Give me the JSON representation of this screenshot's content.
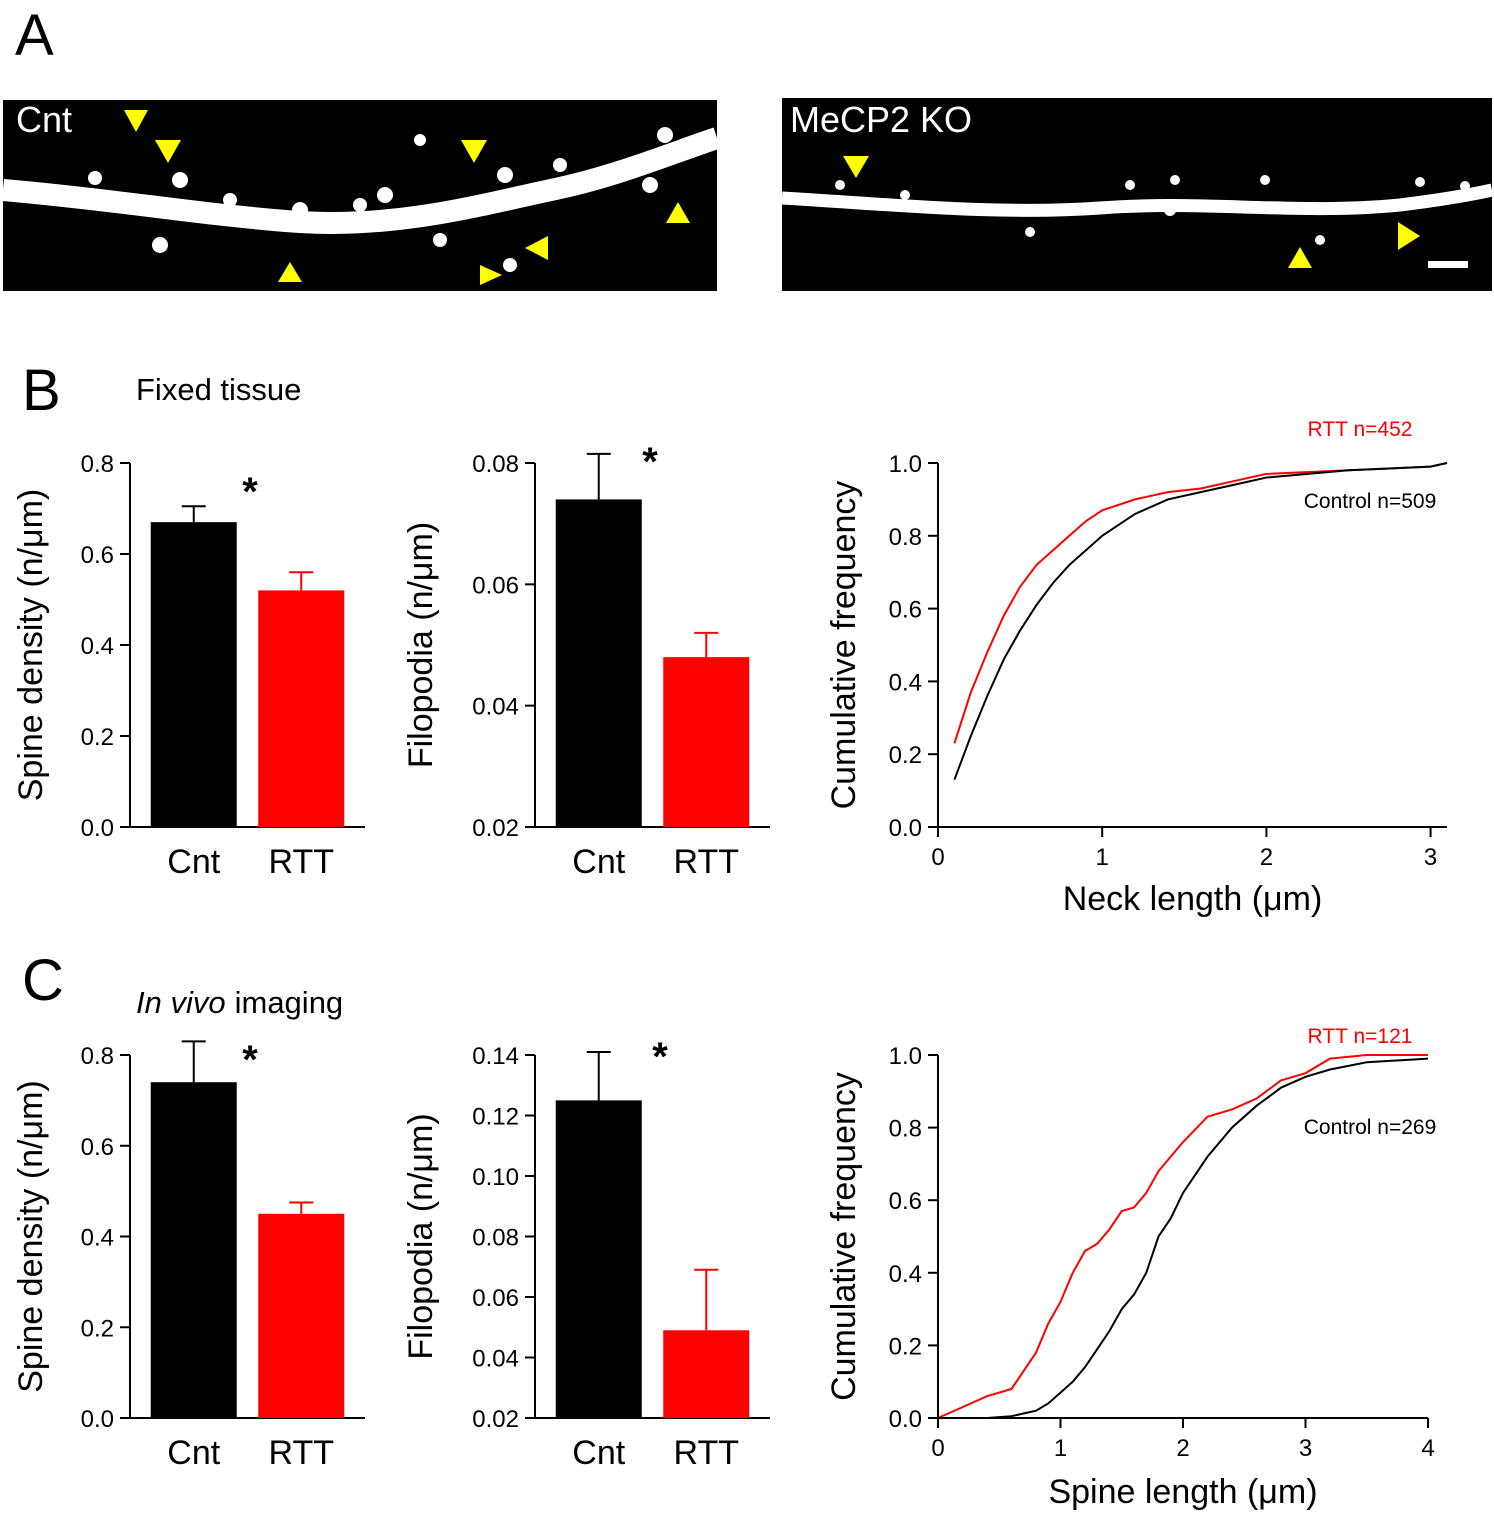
{
  "figure": {
    "panels": [
      {
        "letter": "A",
        "images": [
          "Cnt",
          "MeCP2 KO"
        ]
      },
      {
        "letter": "B",
        "subtitle": "Fixed tissue"
      },
      {
        "letter": "C",
        "subtitle_italic": "In vivo",
        "subtitle_rest": "imaging"
      }
    ]
  },
  "chart_data": [
    {
      "type": "bar",
      "ylabel": "Spine density (n/μm)",
      "categories": [
        "Cnt",
        "RTT"
      ],
      "values": [
        0.67,
        0.52
      ],
      "errors": [
        0.035,
        0.04
      ],
      "colors": [
        "#000000",
        "#ff0000"
      ],
      "annotation": "*",
      "ylim": [
        0,
        0.8
      ],
      "yticks": [
        {
          "value": 0,
          "label": "0.0"
        },
        0.2,
        0.4,
        0.6,
        0.8
      ]
    },
    {
      "type": "bar",
      "ylabel": "Filopodia (n/μm)",
      "categories": [
        "Cnt",
        "RTT"
      ],
      "values": [
        0.074,
        0.048
      ],
      "errors": [
        0.0075,
        0.004
      ],
      "colors": [
        "#000000",
        "#ff0000"
      ],
      "annotation": "*",
      "ylim": [
        0.02,
        0.08
      ],
      "yticks": [
        0.02,
        0.04,
        0.06,
        0.08
      ]
    },
    {
      "type": "line",
      "xlabel": "Neck length (μm)",
      "ylabel": "Cumulative frequency",
      "x": [
        0.1,
        0.2,
        0.3,
        0.4,
        0.5,
        0.6,
        0.7,
        0.8,
        0.9,
        1.0,
        1.2,
        1.4,
        1.6,
        1.8,
        2.0,
        2.5,
        3.0,
        3.1
      ],
      "series": [
        {
          "name": "RTT n=452",
          "color": "#ff0000",
          "values": [
            0.23,
            0.37,
            0.48,
            0.58,
            0.66,
            0.72,
            0.76,
            0.8,
            0.84,
            0.87,
            0.9,
            0.92,
            0.93,
            0.95,
            0.97,
            0.98,
            0.99,
            1.0
          ]
        },
        {
          "name": "Control n=509",
          "color": "#000000",
          "values": [
            0.13,
            0.25,
            0.36,
            0.46,
            0.54,
            0.61,
            0.67,
            0.72,
            0.76,
            0.8,
            0.86,
            0.9,
            0.92,
            0.94,
            0.96,
            0.98,
            0.99,
            1.0
          ]
        }
      ],
      "xlim": [
        0,
        3.1
      ],
      "xticks": [
        0,
        1,
        2,
        3
      ],
      "ylim": [
        0,
        1
      ],
      "yticks": [
        {
          "value": 0,
          "label": "0.0"
        },
        0.2,
        0.4,
        0.6,
        0.8,
        {
          "value": 1,
          "label": "1.0"
        }
      ]
    },
    {
      "type": "bar",
      "ylabel": "Spine density (n/μm)",
      "categories": [
        "Cnt",
        "RTT"
      ],
      "values": [
        0.74,
        0.45
      ],
      "errors": [
        0.09,
        0.025
      ],
      "colors": [
        "#000000",
        "#ff0000"
      ],
      "annotation": "*",
      "ylim": [
        0,
        0.8
      ],
      "yticks": [
        {
          "value": 0,
          "label": "0.0"
        },
        0.2,
        0.4,
        0.6,
        0.8
      ]
    },
    {
      "type": "bar",
      "ylabel": "Filopodia (n/μm)",
      "categories": [
        "Cnt",
        "RTT"
      ],
      "values": [
        0.125,
        0.049
      ],
      "errors": [
        0.016,
        0.02
      ],
      "colors": [
        "#000000",
        "#ff0000"
      ],
      "annotation": "*",
      "ylim": [
        0.02,
        0.14
      ],
      "yticks": [
        0.02,
        0.04,
        0.06,
        0.08,
        {
          "value": 0.1,
          "label": "0.10"
        },
        0.12,
        0.14
      ]
    },
    {
      "type": "line",
      "xlabel": "Spine length (μm)",
      "ylabel": "Cumulative frequency",
      "x": [
        0,
        0.2,
        0.4,
        0.6,
        0.8,
        0.9,
        1.0,
        1.1,
        1.2,
        1.3,
        1.4,
        1.5,
        1.6,
        1.7,
        1.8,
        1.9,
        2.0,
        2.2,
        2.4,
        2.6,
        2.8,
        3.0,
        3.2,
        3.5,
        4.0
      ],
      "series": [
        {
          "name": "RTT n=121",
          "color": "#ff0000",
          "values": [
            0,
            0.03,
            0.06,
            0.08,
            0.18,
            0.26,
            0.32,
            0.4,
            0.46,
            0.48,
            0.52,
            0.57,
            0.58,
            0.62,
            0.68,
            0.72,
            0.76,
            0.83,
            0.85,
            0.88,
            0.93,
            0.95,
            0.99,
            1.0,
            1.0
          ]
        },
        {
          "name": "Control n=269",
          "color": "#000000",
          "values": [
            0,
            0,
            0,
            0.005,
            0.02,
            0.04,
            0.07,
            0.1,
            0.14,
            0.19,
            0.24,
            0.3,
            0.34,
            0.4,
            0.5,
            0.55,
            0.62,
            0.72,
            0.8,
            0.86,
            0.91,
            0.94,
            0.96,
            0.98,
            0.99
          ]
        }
      ],
      "xlim": [
        0,
        4
      ],
      "xticks": [
        0,
        1,
        2,
        3,
        4
      ],
      "ylim": [
        0,
        1
      ],
      "yticks": [
        {
          "value": 0,
          "label": "0.0"
        },
        0.2,
        0.4,
        0.6,
        0.8,
        {
          "value": 1,
          "label": "1.0"
        }
      ]
    }
  ]
}
